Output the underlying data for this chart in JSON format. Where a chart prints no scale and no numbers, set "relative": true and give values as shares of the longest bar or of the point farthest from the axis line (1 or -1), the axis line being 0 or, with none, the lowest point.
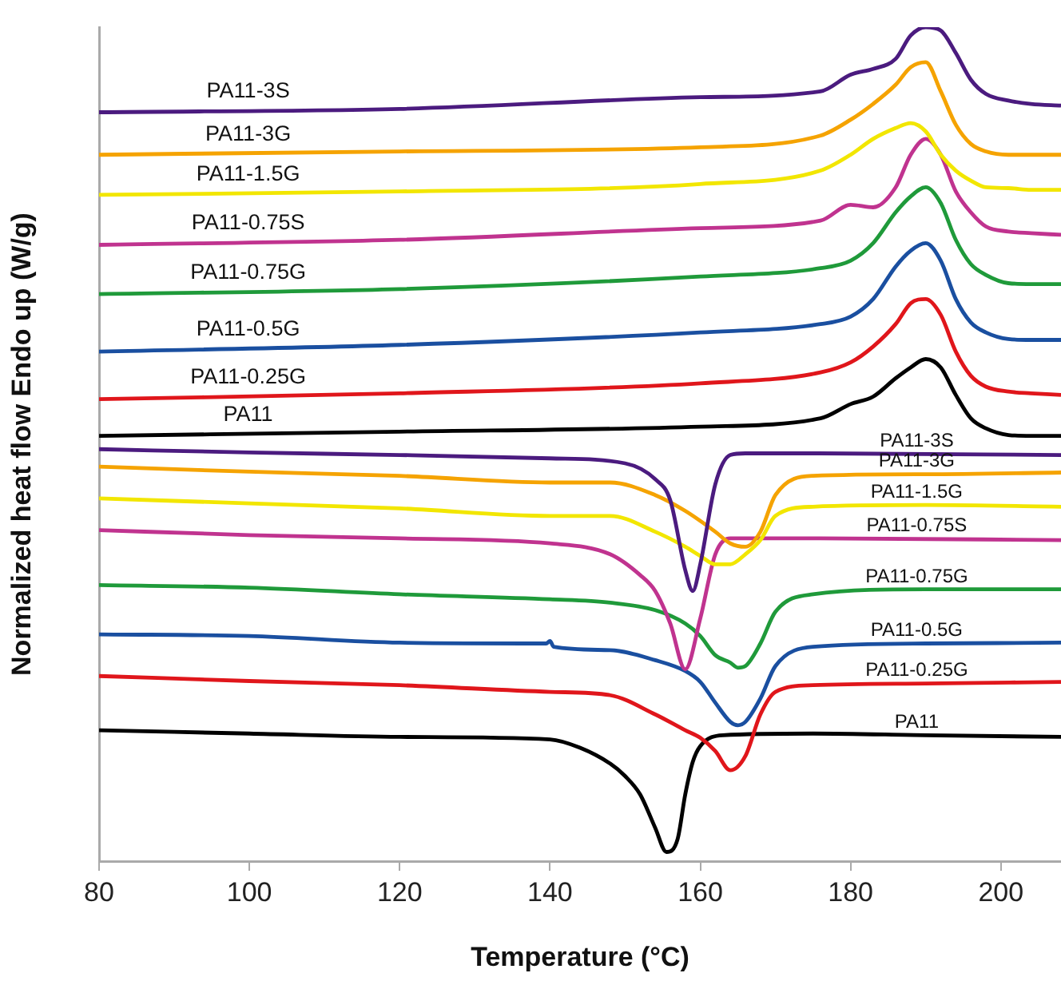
{
  "chart_data": {
    "type": "line",
    "relative": true,
    "xlabel": "Temperature (°C)",
    "ylabel": "Normalized heat flow Endo up (W/g)",
    "xlim": [
      80,
      208
    ],
    "xticks": [
      80,
      100,
      120,
      140,
      160,
      180,
      200
    ],
    "grid": false,
    "marker": "none",
    "line_style": "solid",
    "series": [
      {
        "name": "PA11-3S",
        "color": "#4b1b7f",
        "x": [
          80,
          120,
          160,
          176,
          180,
          183,
          186,
          188,
          190,
          192,
          194,
          196,
          198,
          201,
          204,
          208
        ],
        "values": [
          0.898,
          0.902,
          0.916,
          0.923,
          0.943,
          0.95,
          0.962,
          0.99,
          1.0,
          0.996,
          0.969,
          0.937,
          0.92,
          0.912,
          0.908,
          0.906
        ]
      },
      {
        "name": "PA11-3G",
        "color": "#f5a300",
        "x": [
          80,
          120,
          160,
          176,
          180,
          183,
          186,
          188,
          190,
          192,
          194,
          196,
          198,
          201,
          204,
          208
        ],
        "values": [
          0.847,
          0.851,
          0.856,
          0.87,
          0.889,
          0.908,
          0.931,
          0.952,
          0.958,
          0.923,
          0.883,
          0.86,
          0.851,
          0.847,
          0.847,
          0.847
        ]
      },
      {
        "name": "PA11-1.5G",
        "color": "#f2e600",
        "x": [
          80,
          120,
          160,
          176,
          180,
          183,
          186,
          188,
          190,
          192,
          194,
          196,
          198,
          201,
          204,
          208
        ],
        "values": [
          0.799,
          0.803,
          0.812,
          0.828,
          0.847,
          0.866,
          0.879,
          0.885,
          0.875,
          0.847,
          0.828,
          0.816,
          0.808,
          0.807,
          0.805,
          0.805
        ]
      },
      {
        "name": "PA11-0.75S",
        "color": "#c0338f",
        "x": [
          80,
          120,
          160,
          176,
          180,
          183,
          186,
          188,
          190,
          192,
          194,
          196,
          198,
          201,
          204,
          208
        ],
        "values": [
          0.739,
          0.745,
          0.759,
          0.768,
          0.787,
          0.784,
          0.808,
          0.847,
          0.866,
          0.847,
          0.803,
          0.778,
          0.761,
          0.755,
          0.753,
          0.751
        ]
      },
      {
        "name": "PA11-0.75G",
        "color": "#1f9a3a",
        "x": [
          80,
          120,
          160,
          176,
          180,
          183,
          186,
          188,
          190,
          192,
          194,
          196,
          198,
          201,
          204,
          208
        ],
        "values": [
          0.68,
          0.686,
          0.701,
          0.711,
          0.72,
          0.741,
          0.778,
          0.797,
          0.808,
          0.789,
          0.745,
          0.716,
          0.703,
          0.693,
          0.692,
          0.692
        ]
      },
      {
        "name": "PA11-0.5G",
        "color": "#1a4fa0",
        "x": [
          80,
          120,
          160,
          176,
          180,
          183,
          186,
          188,
          190,
          192,
          194,
          196,
          198,
          201,
          204,
          208
        ],
        "values": [
          0.611,
          0.619,
          0.634,
          0.644,
          0.653,
          0.674,
          0.713,
          0.732,
          0.741,
          0.72,
          0.674,
          0.646,
          0.634,
          0.626,
          0.625,
          0.625
        ]
      },
      {
        "name": "PA11-0.25G",
        "color": "#e0161b",
        "x": [
          80,
          120,
          160,
          176,
          180,
          183,
          186,
          188,
          190,
          192,
          194,
          196,
          198,
          201,
          204,
          208
        ],
        "values": [
          0.554,
          0.561,
          0.573,
          0.586,
          0.598,
          0.617,
          0.644,
          0.669,
          0.674,
          0.655,
          0.611,
          0.582,
          0.569,
          0.563,
          0.561,
          0.559
        ]
      },
      {
        "name": "PA11",
        "color": "#000000",
        "x": [
          80,
          120,
          160,
          176,
          180,
          183,
          186,
          188,
          190,
          192,
          194,
          196,
          198,
          201,
          204,
          208
        ],
        "values": [
          0.51,
          0.515,
          0.521,
          0.531,
          0.548,
          0.557,
          0.579,
          0.592,
          0.602,
          0.592,
          0.559,
          0.531,
          0.519,
          0.511,
          0.51,
          0.51
        ]
      },
      {
        "name": "PA11-3S",
        "color": "#4b1b7f",
        "x": [
          80,
          100,
          120,
          140,
          150,
          154,
          156,
          158,
          159,
          160,
          162,
          164,
          166,
          175,
          208
        ],
        "values": [
          0.494,
          0.49,
          0.487,
          0.483,
          0.477,
          0.458,
          0.433,
          0.349,
          0.324,
          0.356,
          0.452,
          0.487,
          0.489,
          0.489,
          0.487
        ]
      },
      {
        "name": "PA11-3G",
        "color": "#f5a300",
        "x": [
          80,
          100,
          120,
          140,
          148,
          154,
          158,
          162,
          164,
          166,
          168,
          170,
          175,
          190,
          208
        ],
        "values": [
          0.473,
          0.467,
          0.462,
          0.454,
          0.454,
          0.439,
          0.42,
          0.395,
          0.381,
          0.377,
          0.395,
          0.439,
          0.462,
          0.464,
          0.466
        ]
      },
      {
        "name": "PA11-1.5G",
        "color": "#f2e600",
        "x": [
          80,
          100,
          120,
          140,
          148,
          154,
          158,
          160,
          162,
          164,
          166,
          168,
          170,
          175,
          190,
          208
        ],
        "values": [
          0.435,
          0.429,
          0.423,
          0.414,
          0.414,
          0.395,
          0.377,
          0.366,
          0.356,
          0.356,
          0.368,
          0.385,
          0.414,
          0.425,
          0.427,
          0.425
        ]
      },
      {
        "name": "PA11-0.75S",
        "color": "#c0338f",
        "x": [
          80,
          100,
          120,
          140,
          148,
          152,
          154,
          156,
          158,
          160,
          162,
          164,
          166,
          175,
          208
        ],
        "values": [
          0.397,
          0.391,
          0.387,
          0.381,
          0.368,
          0.343,
          0.324,
          0.285,
          0.23,
          0.291,
          0.368,
          0.387,
          0.387,
          0.387,
          0.385
        ]
      },
      {
        "name": "PA11-0.75G",
        "color": "#1f9a3a",
        "x": [
          80,
          100,
          120,
          140,
          148,
          154,
          158,
          160,
          162,
          164,
          165,
          166,
          168,
          170,
          175,
          190,
          208
        ],
        "values": [
          0.331,
          0.328,
          0.32,
          0.314,
          0.31,
          0.301,
          0.285,
          0.27,
          0.247,
          0.238,
          0.232,
          0.234,
          0.261,
          0.299,
          0.32,
          0.326,
          0.326
        ]
      },
      {
        "name": "PA11-0.5G",
        "color": "#1a4fa0",
        "x": [
          80,
          100,
          120,
          139.5,
          140,
          140.5,
          148,
          154,
          158,
          160,
          162,
          164,
          165,
          166,
          168,
          170,
          175,
          190,
          208
        ],
        "values": [
          0.272,
          0.27,
          0.262,
          0.261,
          0.264,
          0.257,
          0.253,
          0.241,
          0.228,
          0.215,
          0.19,
          0.167,
          0.163,
          0.167,
          0.195,
          0.234,
          0.257,
          0.261,
          0.262
        ]
      },
      {
        "name": "PA11-0.25G",
        "color": "#e0161b",
        "x": [
          80,
          100,
          120,
          140,
          148,
          154,
          158,
          160,
          162,
          164,
          166,
          168,
          170,
          175,
          190,
          208
        ],
        "values": [
          0.222,
          0.216,
          0.211,
          0.203,
          0.199,
          0.176,
          0.157,
          0.148,
          0.132,
          0.109,
          0.126,
          0.176,
          0.203,
          0.211,
          0.213,
          0.215
        ]
      },
      {
        "name": "PA11",
        "color": "#000000",
        "x": [
          80,
          100,
          120,
          140,
          144,
          148,
          150,
          152,
          154,
          155.5,
          157,
          158,
          159,
          160,
          163,
          175,
          190,
          208
        ],
        "values": [
          0.157,
          0.153,
          0.149,
          0.146,
          0.136,
          0.117,
          0.102,
          0.08,
          0.04,
          0.011,
          0.027,
          0.08,
          0.119,
          0.138,
          0.151,
          0.153,
          0.151,
          0.149
        ]
      }
    ]
  }
}
